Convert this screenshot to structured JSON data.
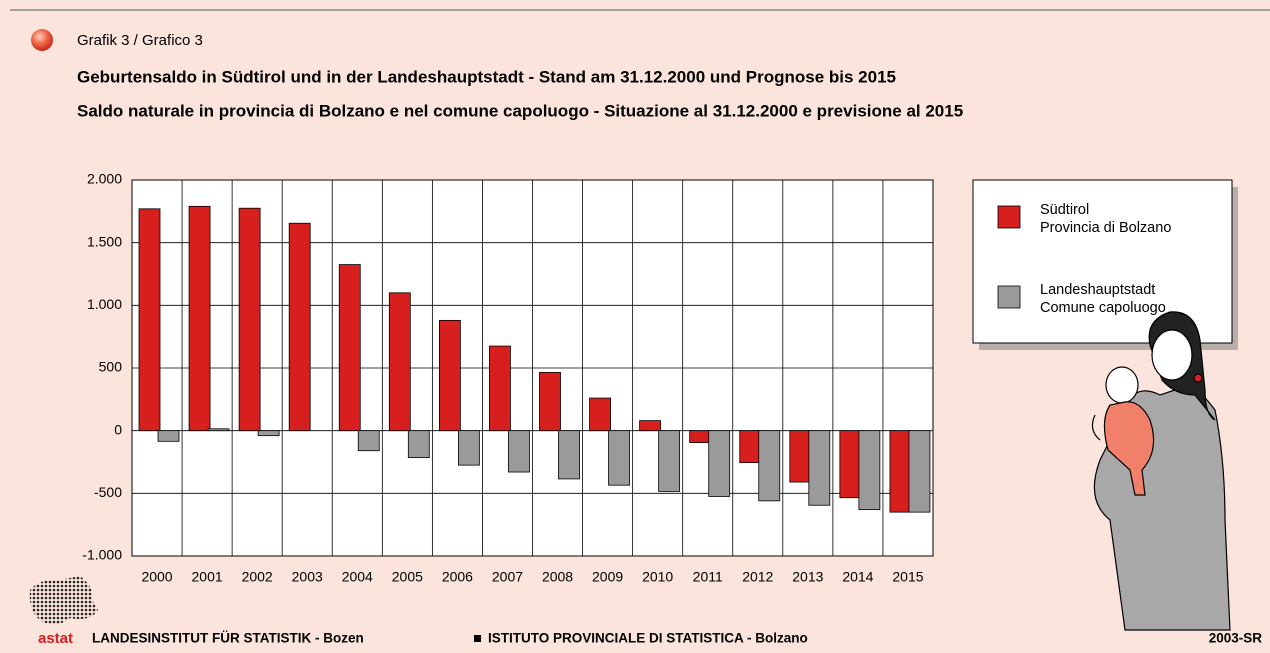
{
  "header": {
    "label": "Grafik 3 / Grafico 3"
  },
  "chart_data": {
    "type": "bar",
    "title": "Geburtensaldo in Südtirol und in der Landeshauptstadt - Stand am 31.12.2000 und Prognose bis 2015",
    "subtitle": "Saldo naturale in provincia di Bolzano e nel comune capoluogo - Situazione al 31.12.2000 e previsione al 2015",
    "categories": [
      "2000",
      "2001",
      "2002",
      "2003",
      "2004",
      "2005",
      "2006",
      "2007",
      "2008",
      "2009",
      "2010",
      "2011",
      "2012",
      "2013",
      "2014",
      "2015"
    ],
    "series": [
      {
        "name": "Südtirol\nProvincia di Bolzano",
        "color": "#d7201e",
        "values": [
          1770,
          1790,
          1775,
          1655,
          1325,
          1100,
          880,
          675,
          465,
          260,
          80,
          -95,
          -255,
          -410,
          -535,
          -650
        ]
      },
      {
        "name": "Landeshauptstadt\nComune capoluogo",
        "color": "#9a9a9a",
        "values": [
          -85,
          15,
          -40,
          0,
          -160,
          -215,
          -275,
          -330,
          -385,
          -435,
          -485,
          -525,
          -560,
          -595,
          -630,
          -650
        ]
      }
    ],
    "ylim": [
      -1000,
      2000
    ],
    "yticks": [
      {
        "value": -1000,
        "label": "-1.000"
      },
      -500,
      0,
      500,
      {
        "value": 1000,
        "label": "1.000"
      },
      {
        "value": 1500,
        "label": "1.500"
      },
      {
        "value": 2000,
        "label": "2.000"
      }
    ],
    "grid": true
  },
  "footer": {
    "logo": "astat",
    "left": "LANDESINSTITUT FÜR STATISTIK - Bozen",
    "right": "ISTITUTO PROVINCIALE DI STATISTICA - Bolzano",
    "code": "2003-SR"
  }
}
